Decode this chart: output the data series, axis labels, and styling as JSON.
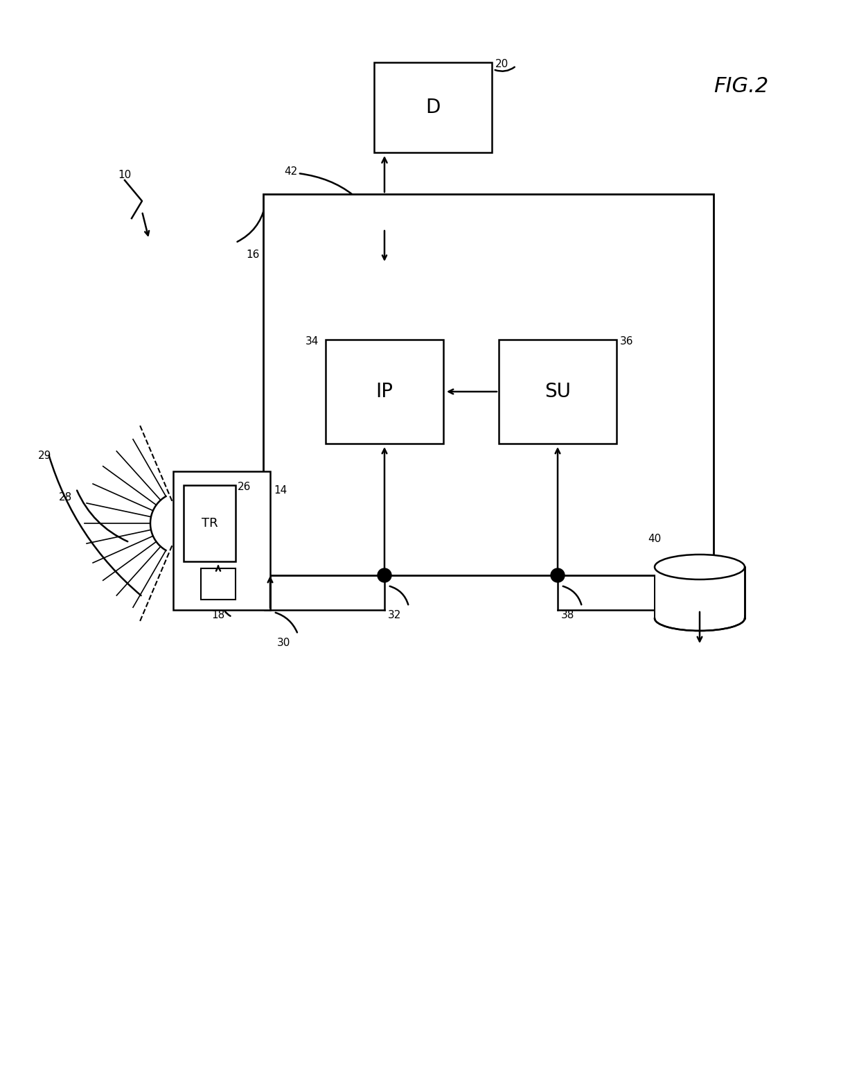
{
  "bg_color": "#ffffff",
  "line_color": "#000000",
  "fig_label": "FIG.2",
  "ref_10": "10",
  "ref_14": "14",
  "ref_16": "16",
  "ref_18": "18",
  "ref_20": "20",
  "ref_26": "26",
  "ref_28": "28",
  "ref_29": "29",
  "ref_30": "30",
  "ref_32": "32",
  "ref_34": "34",
  "ref_36": "36",
  "ref_38": "38",
  "ref_40": "40",
  "ref_42": "42",
  "label_D": "D",
  "label_TR": "TR",
  "label_IP": "IP",
  "label_SU": "SU"
}
